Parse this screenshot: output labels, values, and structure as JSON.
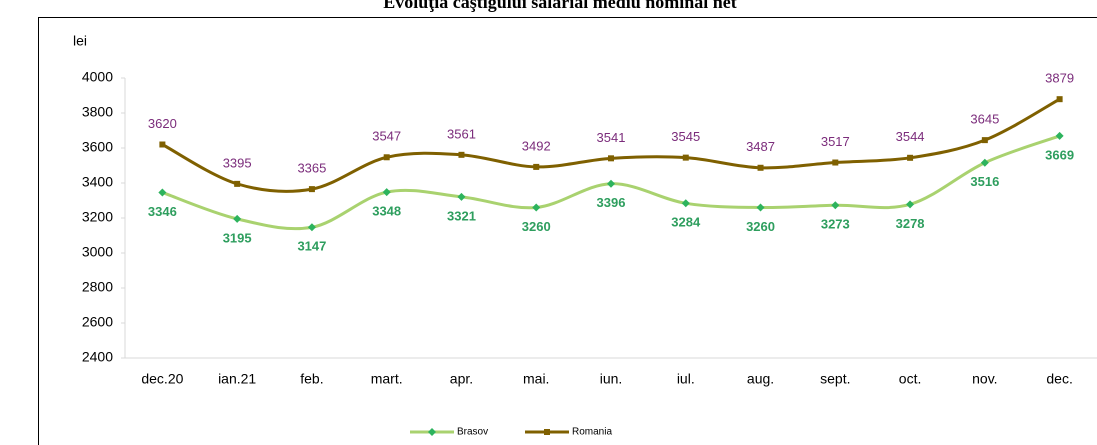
{
  "chart_data": {
    "type": "line",
    "title": "Evoluţia câştigului salarial mediu nominal net",
    "y_label": "lei",
    "categories": [
      "dec.20",
      "ian.21",
      "feb.",
      "mart.",
      "apr.",
      "mai.",
      "iun.",
      "iul.",
      "aug.",
      "sept.",
      "oct.",
      "nov.",
      "dec."
    ],
    "series": [
      {
        "name": "Brasov",
        "color": "#a9d26f",
        "marker_color": "#2db35d",
        "label_color": "#2e9e5e",
        "values": [
          3346,
          3195,
          3147,
          3348,
          3321,
          3260,
          3396,
          3284,
          3260,
          3273,
          3278,
          3516,
          3669
        ]
      },
      {
        "name": "Romania",
        "color": "#7f6000",
        "marker_color": "#7f6000",
        "label_color": "#7b2c7b",
        "values": [
          3620,
          3395,
          3365,
          3547,
          3561,
          3492,
          3541,
          3545,
          3487,
          3517,
          3544,
          3645,
          3879
        ]
      }
    ],
    "ylim": [
      2400,
      4000
    ],
    "yticks": [
      2400,
      2600,
      2800,
      3000,
      3200,
      3400,
      3600,
      3800,
      4000
    ],
    "legend": "bottom"
  }
}
